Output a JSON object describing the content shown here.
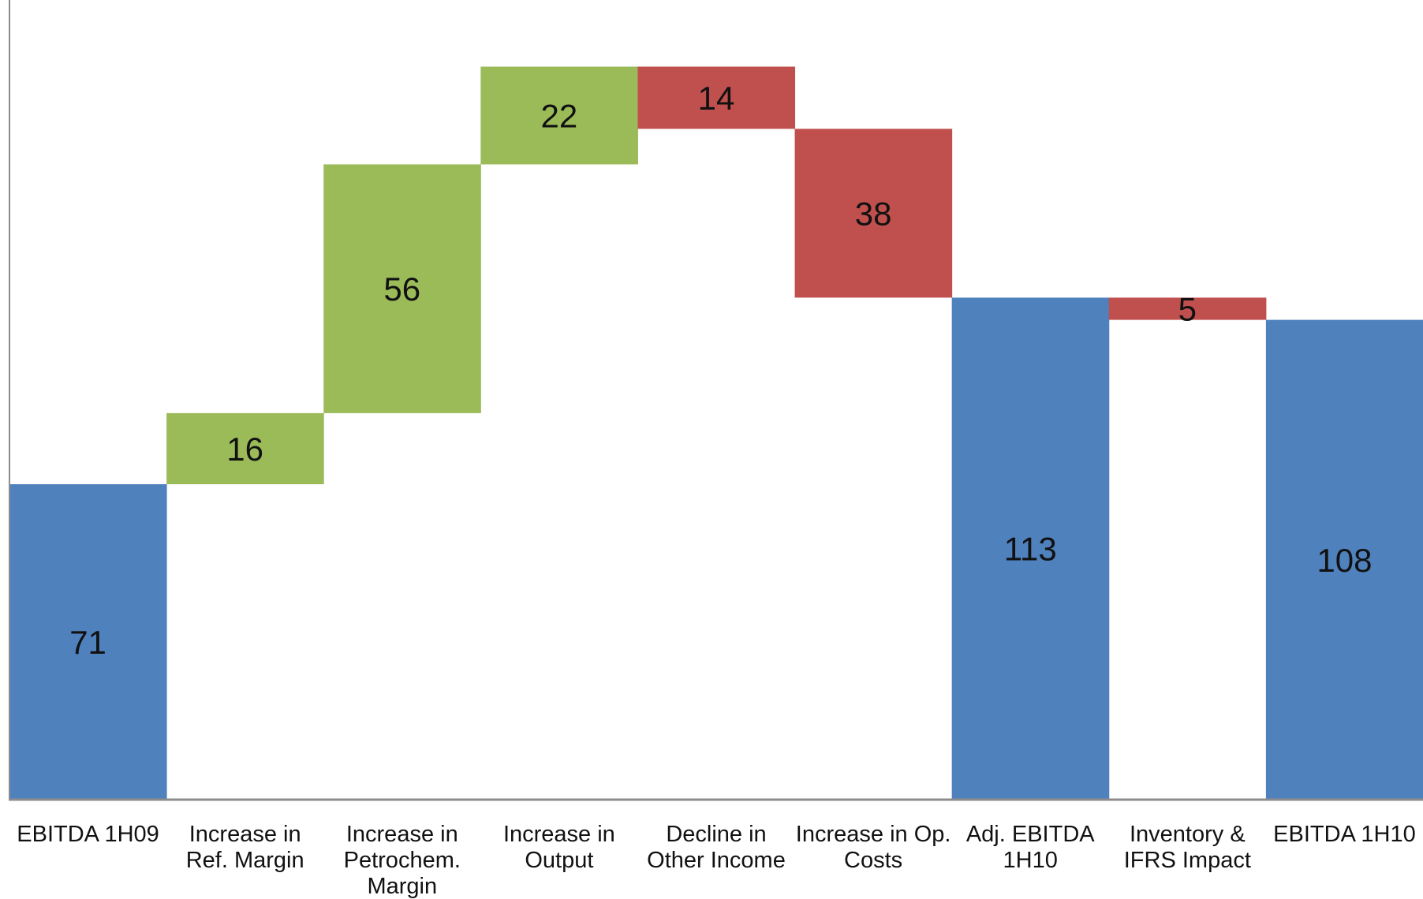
{
  "chart_data": {
    "type": "bar",
    "subtype": "waterfall",
    "categories": [
      [
        "EBITDA 1H09"
      ],
      [
        "Increase in",
        "Ref. Margin"
      ],
      [
        "Increase in",
        "Petrochem.",
        "Margin"
      ],
      [
        "Increase in",
        "Output"
      ],
      [
        "Decline in",
        "Other Income"
      ],
      [
        "Increase in Op.",
        "Costs"
      ],
      [
        "Adj. EBITDA",
        "1H10"
      ],
      [
        "Inventory &",
        "IFRS Impact"
      ],
      [
        "EBITDA 1H10"
      ]
    ],
    "steps": [
      {
        "kind": "total",
        "value": 71,
        "label": "71"
      },
      {
        "kind": "increase",
        "value": 16,
        "label": "16"
      },
      {
        "kind": "increase",
        "value": 56,
        "label": "56"
      },
      {
        "kind": "increase",
        "value": 22,
        "label": "22"
      },
      {
        "kind": "decrease",
        "value": 14,
        "label": "14"
      },
      {
        "kind": "decrease",
        "value": 38,
        "label": "38"
      },
      {
        "kind": "total",
        "value": 113,
        "label": "113"
      },
      {
        "kind": "decrease",
        "value": 5,
        "label": "5"
      },
      {
        "kind": "total",
        "value": 108,
        "label": "108"
      }
    ],
    "colors": {
      "total": "#4F81BD",
      "increase": "#9BBB59",
      "decrease": "#C0504D",
      "axis": "#8c8c8c"
    },
    "ylim": [
      0,
      180
    ],
    "grid": false,
    "legend": "none"
  }
}
